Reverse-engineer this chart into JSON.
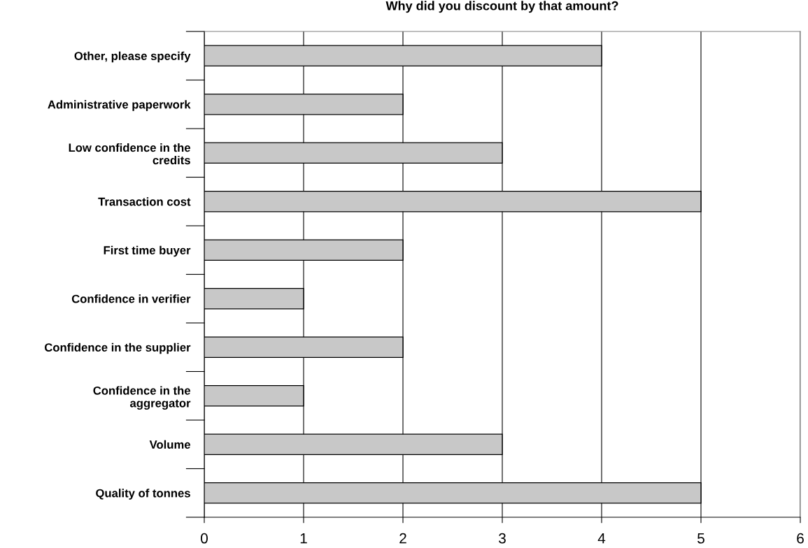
{
  "chart_data": {
    "type": "bar",
    "orientation": "horizontal",
    "title": "Why did you discount by that amount?",
    "categories": [
      "Other, please specify",
      "Administrative paperwork",
      "Low confidence in the\ncredits",
      "Transaction cost",
      "First time buyer",
      "Confidence in verifier",
      "Confidence in the supplier",
      "Confidence in the\naggregator",
      "Volume",
      "Quality of tonnes"
    ],
    "values": [
      4,
      2,
      3,
      5,
      2,
      1,
      2,
      1,
      3,
      5
    ],
    "color": "#c8c8c8",
    "xlim": [
      0,
      6
    ],
    "xticks": [
      0,
      1,
      2,
      3,
      4,
      5,
      6
    ],
    "grid": "x",
    "legend": false
  }
}
